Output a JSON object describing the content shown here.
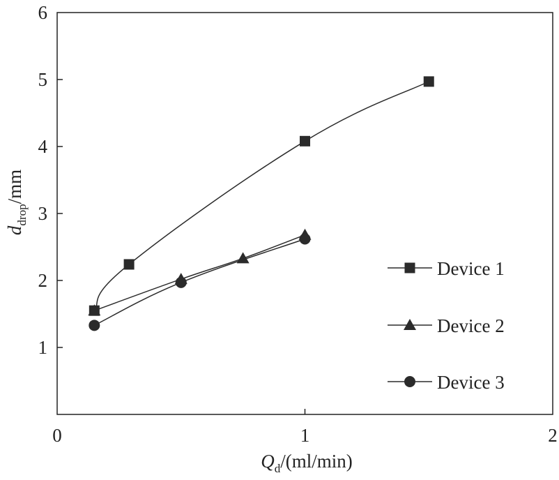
{
  "chart_data": {
    "type": "line",
    "xlabel": {
      "main": "Q",
      "sub": "d",
      "rest": "/(ml/min)"
    },
    "ylabel": {
      "main": "d",
      "sub": "drop",
      "rest": "/mm"
    },
    "xlim": [
      0,
      2
    ],
    "ylim": [
      0,
      6
    ],
    "xticks": [
      "0",
      "1",
      "2"
    ],
    "yticks": [
      "1",
      "2",
      "3",
      "4",
      "5",
      "6"
    ],
    "grid": false,
    "legend_position": "right",
    "series": [
      {
        "name": "Device 1",
        "marker": "square",
        "points": [
          {
            "x": 0.15,
            "y": 1.55
          },
          {
            "x": 0.29,
            "y": 2.24
          },
          {
            "x": 1.0,
            "y": 4.08
          },
          {
            "x": 1.5,
            "y": 4.97
          }
        ]
      },
      {
        "name": "Device 2",
        "marker": "triangle",
        "points": [
          {
            "x": 0.15,
            "y": 1.55
          },
          {
            "x": 0.5,
            "y": 2.02
          },
          {
            "x": 0.75,
            "y": 2.33
          },
          {
            "x": 1.0,
            "y": 2.68
          }
        ]
      },
      {
        "name": "Device 3",
        "marker": "circle",
        "points": [
          {
            "x": 0.15,
            "y": 1.33
          },
          {
            "x": 0.5,
            "y": 1.97
          },
          {
            "x": 1.0,
            "y": 2.62
          }
        ]
      }
    ]
  }
}
